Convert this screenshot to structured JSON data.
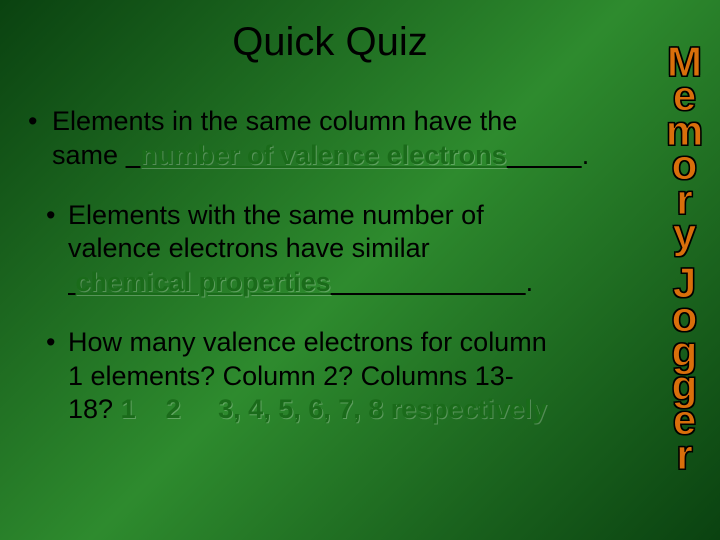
{
  "title": "Quick Quiz",
  "sidebar_text": "Memory Jogger",
  "sidebar_color": "#d96f0b",
  "q1": {
    "line1": "Elements in the same column have the",
    "line2_prefix": "same ",
    "answer": "number of valence electrons",
    "line2_suffix": "."
  },
  "q2": {
    "line1": "Elements with the same number of",
    "line2": "valence electrons have similar",
    "answer": "chemical properties",
    "line3_suffix": "."
  },
  "q3": {
    "line1": "How many valence electrons for column",
    "line2": "1 elements?  Column 2?  Columns 13-",
    "line3_prefix": "18?   ",
    "answer_a": "1",
    "answer_b": "2",
    "answer_c": "3, 4, 5, 6, 7, 8 respectively"
  }
}
